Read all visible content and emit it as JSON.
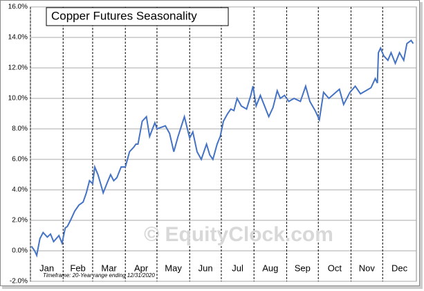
{
  "chart_data": {
    "type": "line",
    "title": "Copper Futures Seasonality",
    "note": "Timeframe:  20-Year range  ending 12/31/2020",
    "watermark": "© EquityClock.com",
    "xlim": [
      0,
      366
    ],
    "xticks": [
      {
        "value": 0,
        "label": "Jan"
      },
      {
        "value": 31,
        "label": "Feb"
      },
      {
        "value": 59,
        "label": "Mar"
      },
      {
        "value": 90,
        "label": "Apr"
      },
      {
        "value": 120,
        "label": "May"
      },
      {
        "value": 151,
        "label": "Jun"
      },
      {
        "value": 181,
        "label": "Jul"
      },
      {
        "value": 212,
        "label": "Aug"
      },
      {
        "value": 243,
        "label": "Sep"
      },
      {
        "value": 273,
        "label": "Oct"
      },
      {
        "value": 304,
        "label": "Nov"
      },
      {
        "value": 334,
        "label": "Dec"
      }
    ],
    "ylim": [
      -2,
      16
    ],
    "yticks": [
      {
        "value": -2,
        "label": "-2.0%"
      },
      {
        "value": 0,
        "label": "0.0%"
      },
      {
        "value": 2,
        "label": "2.0%"
      },
      {
        "value": 4,
        "label": "4.0%"
      },
      {
        "value": 6,
        "label": "6.0%"
      },
      {
        "value": 8,
        "label": "8.0%"
      },
      {
        "value": 10,
        "label": "10.0%"
      },
      {
        "value": 12,
        "label": "12.0%"
      },
      {
        "value": 14,
        "label": "14.0%"
      },
      {
        "value": 16,
        "label": "16.0%"
      }
    ],
    "grid": true,
    "series": [
      {
        "color": "#4472c4",
        "x": [
          1,
          4,
          6,
          9,
          12,
          16,
          19,
          22,
          27,
          30,
          33,
          35,
          38,
          42,
          46,
          50,
          53,
          56,
          59,
          61,
          64,
          67,
          69,
          73,
          76,
          79,
          82,
          86,
          90,
          94,
          98,
          100,
          102,
          106,
          110,
          113,
          118,
          120,
          128,
          132,
          136,
          140,
          146,
          151,
          154,
          158,
          162,
          167,
          170,
          173,
          177,
          180,
          183,
          187,
          190,
          193,
          196,
          200,
          205,
          209,
          211,
          214,
          218,
          222,
          226,
          230,
          234,
          237,
          241,
          245,
          250,
          256,
          261,
          265,
          270,
          274,
          278,
          283,
          288,
          293,
          297,
          303,
          308,
          313,
          318,
          323,
          327,
          329,
          330,
          332,
          335,
          339,
          342,
          346,
          350,
          354,
          357,
          361,
          363
        ],
        "values": [
          0.3,
          0.0,
          -0.3,
          0.8,
          1.2,
          0.9,
          1.1,
          0.6,
          1.0,
          0.5,
          1.5,
          1.6,
          2.0,
          2.6,
          3.0,
          3.2,
          3.8,
          4.6,
          4.4,
          5.5,
          5.0,
          4.3,
          3.8,
          4.5,
          5.0,
          4.6,
          4.8,
          5.5,
          5.5,
          6.5,
          6.8,
          7.0,
          7.0,
          8.5,
          8.8,
          7.5,
          8.4,
          8.0,
          8.2,
          7.7,
          6.5,
          7.5,
          8.8,
          7.4,
          7.8,
          6.5,
          6.0,
          7.0,
          6.3,
          6.0,
          7.0,
          7.5,
          8.5,
          9.0,
          9.3,
          9.2,
          10.0,
          9.5,
          9.3,
          10.2,
          10.8,
          9.5,
          10.2,
          9.5,
          8.8,
          9.4,
          10.5,
          10.0,
          10.2,
          9.8,
          10.0,
          9.8,
          10.8,
          9.8,
          9.2,
          8.6,
          10.4,
          10.0,
          10.3,
          10.6,
          9.6,
          10.4,
          10.8,
          10.3,
          10.5,
          10.7,
          11.3,
          11.0,
          13.0,
          13.3,
          12.8,
          12.5,
          13.0,
          12.3,
          13.0,
          12.5,
          13.6,
          13.8,
          13.6
        ]
      }
    ]
  }
}
